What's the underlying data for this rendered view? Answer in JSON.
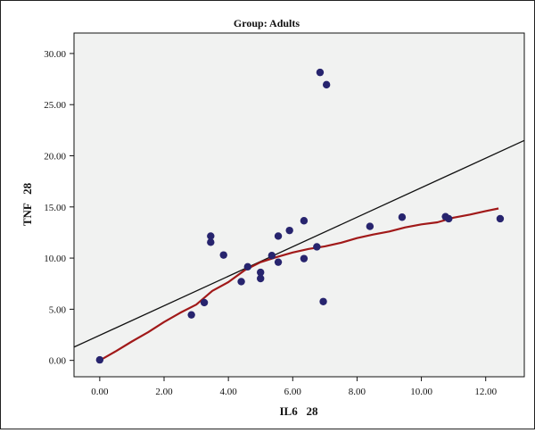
{
  "chart_data": {
    "type": "scatter",
    "title": "Group:  Adults",
    "xlabel": "IL6   28",
    "ylabel": "TNF   28",
    "xlim": [
      -0.8,
      13.2
    ],
    "ylim": [
      -1.6,
      32.0
    ],
    "x_ticks": [
      0,
      2,
      4,
      6,
      8,
      10,
      12
    ],
    "x_tick_labels": [
      "0.00",
      "2.00",
      "4.00",
      "6.00",
      "8.00",
      "10.00",
      "12.00"
    ],
    "y_ticks": [
      0,
      5,
      10,
      15,
      20,
      25,
      30
    ],
    "y_tick_labels": [
      "0.00",
      "5.00",
      "10.00",
      "15.00",
      "20.00",
      "25.00",
      "30.00"
    ],
    "grid": false,
    "colors": {
      "plot_background": "#f1f2f1",
      "points": "#27246e",
      "linear_fit": "#111111",
      "loess_fit": "#a11919"
    },
    "series": [
      {
        "values": [
          [
            0.0,
            0.05
          ],
          [
            2.85,
            4.45
          ],
          [
            3.25,
            5.65
          ],
          [
            3.45,
            12.15
          ],
          [
            3.45,
            11.55
          ],
          [
            3.85,
            10.3
          ],
          [
            4.4,
            7.7
          ],
          [
            4.6,
            9.15
          ],
          [
            5.0,
            8.6
          ],
          [
            5.0,
            8.0
          ],
          [
            5.35,
            10.25
          ],
          [
            5.55,
            12.15
          ],
          [
            5.55,
            9.6
          ],
          [
            5.9,
            12.7
          ],
          [
            6.35,
            13.65
          ],
          [
            6.35,
            9.95
          ],
          [
            6.75,
            11.1
          ],
          [
            6.85,
            28.15
          ],
          [
            6.95,
            5.75
          ],
          [
            7.05,
            26.95
          ],
          [
            8.4,
            13.1
          ],
          [
            9.4,
            14.0
          ],
          [
            10.75,
            14.05
          ],
          [
            10.85,
            13.85
          ],
          [
            12.45,
            13.85
          ]
        ]
      }
    ],
    "linear_fit": [
      [
        -0.8,
        1.3
      ],
      [
        13.2,
        21.5
      ]
    ],
    "loess_fit": [
      [
        0.0,
        0.0
      ],
      [
        0.5,
        0.9
      ],
      [
        1.0,
        1.85
      ],
      [
        1.5,
        2.75
      ],
      [
        2.0,
        3.75
      ],
      [
        2.5,
        4.65
      ],
      [
        3.0,
        5.45
      ],
      [
        3.5,
        6.8
      ],
      [
        4.0,
        7.65
      ],
      [
        4.5,
        8.8
      ],
      [
        5.0,
        9.6
      ],
      [
        5.5,
        10.1
      ],
      [
        6.0,
        10.55
      ],
      [
        6.5,
        10.9
      ],
      [
        7.0,
        11.15
      ],
      [
        7.5,
        11.5
      ],
      [
        8.0,
        11.95
      ],
      [
        8.5,
        12.3
      ],
      [
        9.0,
        12.6
      ],
      [
        9.5,
        13.0
      ],
      [
        10.0,
        13.3
      ],
      [
        10.5,
        13.5
      ],
      [
        11.0,
        13.95
      ],
      [
        11.5,
        14.25
      ],
      [
        12.0,
        14.6
      ],
      [
        12.4,
        14.85
      ]
    ]
  }
}
